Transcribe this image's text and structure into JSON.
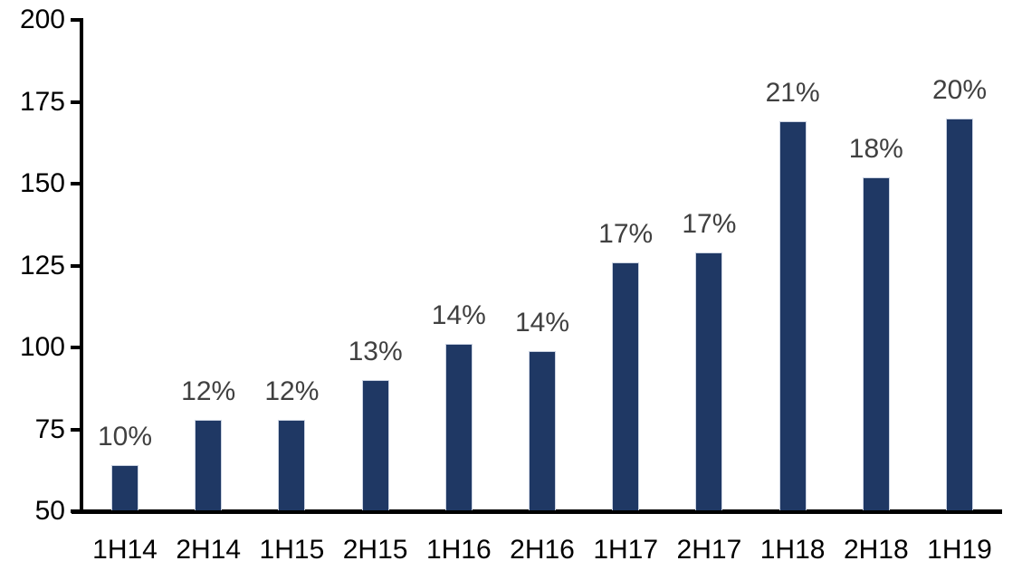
{
  "chart_data": {
    "type": "bar",
    "title": "",
    "xlabel": "",
    "ylabel": "",
    "categories": [
      "1H14",
      "2H14",
      "1H15",
      "2H15",
      "1H16",
      "2H16",
      "1H17",
      "2H17",
      "1H18",
      "2H18",
      "1H19"
    ],
    "values": [
      64,
      78,
      78,
      90,
      101,
      99,
      126,
      129,
      169,
      152,
      170
    ],
    "bar_labels": [
      "10%",
      "12%",
      "12%",
      "13%",
      "14%",
      "14%",
      "17%",
      "17%",
      "21%",
      "18%",
      "20%"
    ],
    "ylim": [
      50,
      200
    ],
    "yticks": [
      50,
      75,
      100,
      125,
      150,
      175,
      200
    ],
    "grid": false,
    "legend": "none",
    "colors": {
      "bar_fill": "#1F3864",
      "bar_border": "#CBD3E2",
      "axis": "#000000",
      "tick_label": "#000000",
      "data_label": "#404040",
      "background": "#FFFFFF"
    }
  }
}
